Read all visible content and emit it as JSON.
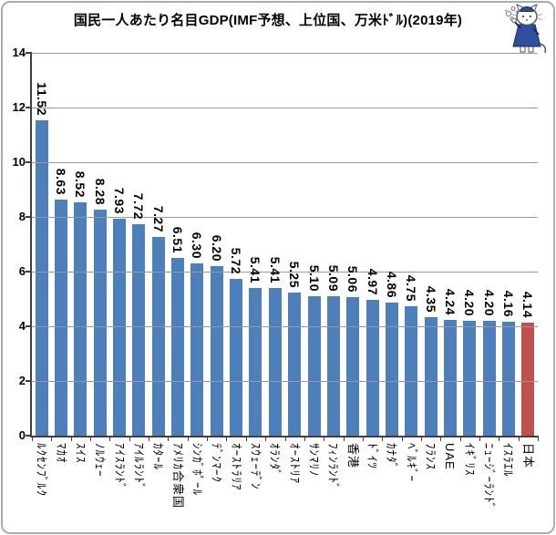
{
  "window": {
    "background": "#ffffff",
    "border_color": "#ababab"
  },
  "header": {
    "title": "国民一人あたり名目GDP(IMF予想、上位国、万米ﾄﾞﾙ)(2019年)",
    "mascot": "cat-mascot-illustration"
  },
  "chart_data": {
    "type": "bar",
    "title": "国民一人あたり名目GDP(IMF予想、上位国、万米ﾄﾞﾙ)(2019年)",
    "xlabel": "",
    "ylabel": "",
    "ylim": [
      0,
      14
    ],
    "yticks": [
      0,
      2,
      4,
      6,
      8,
      10,
      12,
      14
    ],
    "grid": true,
    "legend": false,
    "value_labels_rotated": true,
    "category_labels_rotated": true,
    "categories": [
      "ﾙｸｾﾝﾌﾞﾙｸ",
      "ﾏｶｵ",
      "ｽｲｽ",
      "ﾉﾙｳｪｰ",
      "ｱｲｽﾗﾝﾄﾞ",
      "ｱｲﾙﾗﾝﾄﾞ",
      "ｶﾀｰﾙ",
      "ｱﾒﾘｶ合衆国",
      "ｼﾝｶﾞﾎﾟｰﾙ",
      "ﾃﾞﾝﾏｰｸ",
      "ｵｰｽﾄﾗﾘｱ",
      "ｽｳｪｰﾃﾞﾝ",
      "ｵﾗﾝﾀﾞ",
      "ｵｰｽﾄﾘｱ",
      "ｻﾝﾏﾘﾉ",
      "ﾌｨﾝﾗﾝﾄﾞ",
      "香港",
      "ﾄﾞｲﾂ",
      "ｶﾅﾀﾞ",
      "ﾍﾞﾙｷﾞｰ",
      "ﾌﾗﾝｽ",
      "UAE",
      "ｲｷﾞﾘｽ",
      "ﾆｭｰｼﾞｰﾗﾝﾄﾞ",
      "ｲｽﾗｴﾙ",
      "日本"
    ],
    "values": [
      11.52,
      8.63,
      8.52,
      8.28,
      7.93,
      7.72,
      7.27,
      6.51,
      6.3,
      6.2,
      5.72,
      5.41,
      5.41,
      5.25,
      5.1,
      5.09,
      5.06,
      4.97,
      4.86,
      4.75,
      4.35,
      4.24,
      4.2,
      4.2,
      4.16,
      4.14
    ],
    "value_labels": [
      "11.52",
      "8.63",
      "8.52",
      "8.28",
      "7.93",
      "7.72",
      "7.27",
      "6.51",
      "6.30",
      "6.20",
      "5.72",
      "5.41",
      "5.41",
      "5.25",
      "5.10",
      "5.09",
      "5.06",
      "4.97",
      "4.86",
      "4.75",
      "4.35",
      "4.24",
      "4.20",
      "4.20",
      "4.16",
      "4.14"
    ],
    "highlight_category": "日本",
    "colors": {
      "bar": "#4d80ba",
      "highlight": "#c0504d",
      "gridline": "#989898",
      "axis": "#3f3f3f",
      "text": "#000000"
    }
  }
}
